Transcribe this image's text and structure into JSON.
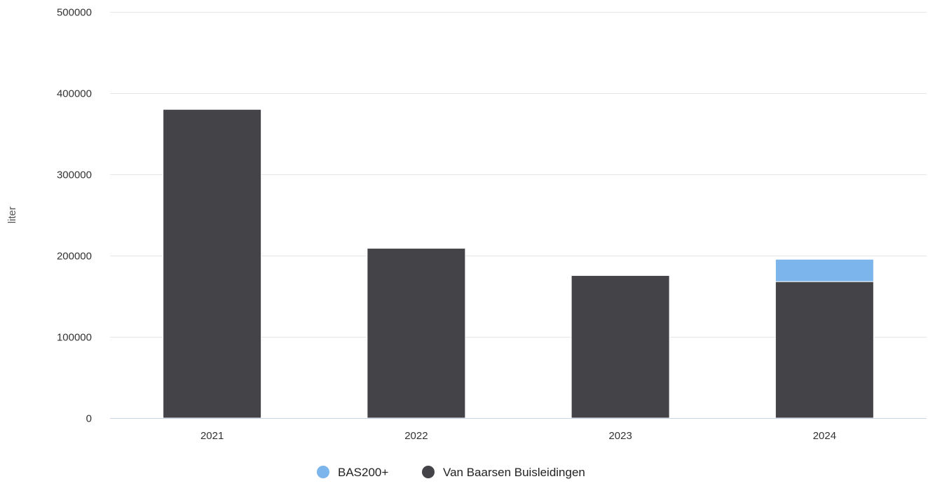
{
  "chart_data": {
    "type": "bar",
    "stacked": true,
    "categories": [
      "2021",
      "2022",
      "2023",
      "2024"
    ],
    "series": [
      {
        "name": "Van Baarsen Buisleidingen",
        "color": "#434348",
        "values": [
          380000,
          209000,
          175500,
          168000
        ]
      },
      {
        "name": "BAS200+",
        "color": "#7cb5ec",
        "values": [
          0,
          0,
          0,
          27500
        ]
      }
    ],
    "legend_order": [
      "BAS200+",
      "Van Baarsen Buisleidingen"
    ],
    "ylabel": "liter",
    "ylim": [
      0,
      500000
    ],
    "yticks": [
      0,
      100000,
      200000,
      300000,
      400000,
      500000
    ],
    "grid": true,
    "legend_position": "bottom-center",
    "colors": {
      "gridline": "#e6e6e6",
      "axis": "#ccd6eb"
    }
  }
}
